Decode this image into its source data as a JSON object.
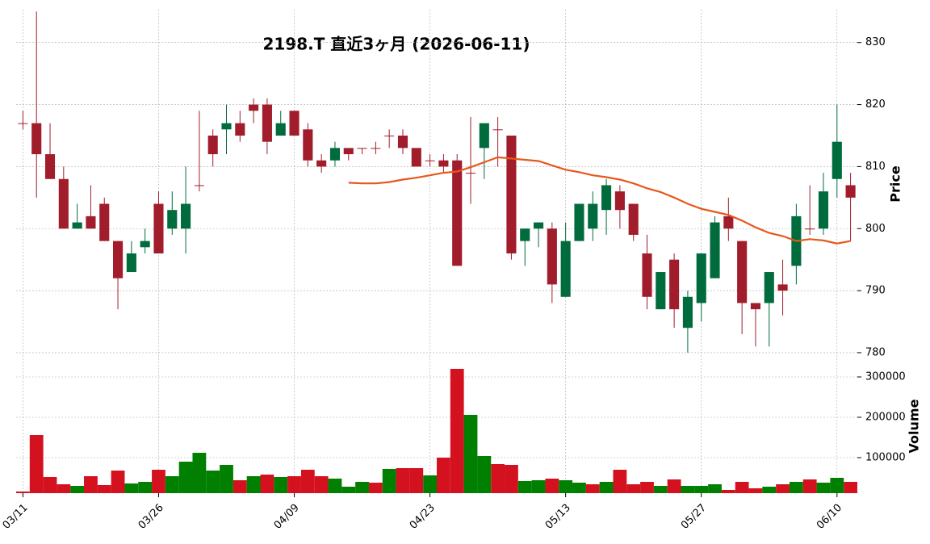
{
  "chart_data": {
    "type": "candlestick",
    "title": "2198.T  直近3ヶ月  (2026-06-11)",
    "categories": [
      "03/11",
      null,
      null,
      null,
      null,
      null,
      null,
      null,
      null,
      null,
      "03/26",
      null,
      null,
      null,
      null,
      null,
      null,
      null,
      null,
      null,
      "04/09",
      null,
      null,
      null,
      null,
      null,
      null,
      null,
      null,
      null,
      "04/23",
      null,
      null,
      null,
      null,
      null,
      null,
      null,
      null,
      null,
      "05/13",
      null,
      null,
      null,
      null,
      null,
      null,
      null,
      null,
      null,
      "05/27",
      null,
      null,
      null,
      null,
      null,
      null,
      null,
      null,
      null,
      "06/10",
      null
    ],
    "open": [
      817,
      817,
      812,
      808,
      800,
      802,
      804,
      798,
      793,
      797,
      804,
      800,
      800,
      807,
      815,
      816,
      817,
      820,
      820,
      815,
      819,
      816,
      811,
      811,
      813,
      813,
      813,
      815,
      815,
      813,
      811,
      811,
      811,
      809,
      813,
      816,
      815,
      798,
      800,
      800,
      789,
      798,
      800,
      803,
      806,
      804,
      796,
      787,
      795,
      784,
      788,
      792,
      802,
      798,
      788,
      788,
      791,
      794,
      800,
      800,
      808,
      807
    ],
    "high": [
      819,
      835,
      817,
      810,
      804,
      807,
      805,
      798,
      798,
      800,
      806,
      806,
      810,
      819,
      816,
      820,
      819,
      821,
      821,
      819,
      819,
      817,
      812,
      814,
      813,
      813,
      814,
      816,
      816,
      813,
      812,
      812,
      812,
      818,
      817,
      818,
      815,
      800,
      801,
      801,
      801,
      804,
      806,
      808,
      807,
      804,
      799,
      793,
      796,
      790,
      796,
      802,
      805,
      798,
      788,
      793,
      795,
      804,
      807,
      809,
      820,
      809
    ],
    "low": [
      816,
      805,
      808,
      800,
      800,
      800,
      798,
      787,
      793,
      796,
      796,
      799,
      796,
      806,
      810,
      812,
      814,
      817,
      812,
      815,
      815,
      810,
      809,
      810,
      811,
      812,
      812,
      813,
      812,
      810,
      810,
      809,
      794,
      804,
      808,
      810,
      795,
      794,
      797,
      788,
      789,
      798,
      798,
      799,
      800,
      798,
      787,
      787,
      784,
      780,
      785,
      792,
      798,
      783,
      781,
      781,
      786,
      791,
      799,
      799,
      805,
      798
    ],
    "close": [
      817,
      812,
      808,
      800,
      801,
      800,
      798,
      792,
      796,
      798,
      796,
      803,
      804,
      807,
      812,
      817,
      815,
      819,
      814,
      817,
      815,
      811,
      810,
      813,
      812,
      813,
      813,
      815,
      813,
      810,
      811,
      810,
      794,
      809,
      817,
      816,
      796,
      800,
      801,
      791,
      798,
      804,
      804,
      807,
      803,
      799,
      789,
      793,
      787,
      789,
      796,
      801,
      800,
      788,
      787,
      793,
      790,
      802,
      800,
      806,
      814,
      805
    ],
    "up_color": "#006b3c",
    "down_color": "#a11d2b",
    "ma": {
      "color": "#e8571b",
      "values": [
        null,
        null,
        null,
        null,
        null,
        null,
        null,
        null,
        null,
        null,
        null,
        null,
        null,
        null,
        null,
        null,
        null,
        null,
        null,
        null,
        null,
        null,
        null,
        null,
        807.4,
        807.3,
        807.3,
        807.5,
        807.9,
        808.2,
        808.6,
        809.0,
        809.2,
        809.9,
        810.7,
        811.5,
        811.3,
        811.1,
        810.9,
        810.2,
        809.5,
        809.1,
        808.6,
        808.3,
        807.9,
        807.3,
        806.5,
        805.9,
        805.0,
        804.0,
        803.2,
        802.7,
        802.2,
        801.3,
        800.2,
        799.3,
        798.8,
        798.0,
        798.3,
        798.1,
        797.6,
        798.0
      ]
    },
    "ylabel": "Price",
    "ylim": [
      778.3,
      835.3
    ],
    "yticks": [
      780,
      790,
      800,
      810,
      820,
      830
    ],
    "grid": true,
    "volume": {
      "label": "Volume",
      "ylim": [
        12000,
        320000
      ],
      "yticks": [
        100000,
        200000,
        300000
      ],
      "values": [
        16000,
        156000,
        52000,
        34000,
        30000,
        54000,
        32000,
        68000,
        36000,
        40000,
        70000,
        54000,
        90000,
        112000,
        68000,
        82000,
        44000,
        54000,
        58000,
        52000,
        54000,
        70000,
        54000,
        48000,
        28000,
        40000,
        38000,
        72000,
        74000,
        74000,
        56000,
        100000,
        320000,
        206000,
        104000,
        84000,
        82000,
        42000,
        44000,
        48000,
        44000,
        38000,
        34000,
        40000,
        70000,
        34000,
        40000,
        30000,
        46000,
        30000,
        30000,
        34000,
        20000,
        40000,
        24000,
        28000,
        34000,
        40000,
        46000,
        38000,
        50000,
        40000
      ],
      "colors": [
        "#d4111e",
        "#d4111e",
        "#d4111e",
        "#d4111e",
        "#007f00",
        "#d4111e",
        "#d4111e",
        "#d4111e",
        "#007f00",
        "#007f00",
        "#d4111e",
        "#007f00",
        "#007f00",
        "#007f00",
        "#007f00",
        "#007f00",
        "#d4111e",
        "#007f00",
        "#d4111e",
        "#007f00",
        "#d4111e",
        "#d4111e",
        "#d4111e",
        "#007f00",
        "#007f00",
        "#007f00",
        "#d4111e",
        "#007f00",
        "#d4111e",
        "#d4111e",
        "#007f00",
        "#d4111e",
        "#d4111e",
        "#007f00",
        "#007f00",
        "#d4111e",
        "#d4111e",
        "#007f00",
        "#007f00",
        "#d4111e",
        "#007f00",
        "#007f00",
        "#d4111e",
        "#007f00",
        "#d4111e",
        "#d4111e",
        "#d4111e",
        "#007f00",
        "#d4111e",
        "#007f00",
        "#007f00",
        "#007f00",
        "#d4111e",
        "#d4111e",
        "#d4111e",
        "#007f00",
        "#d4111e",
        "#007f00",
        "#d4111e",
        "#007f00",
        "#007f00",
        "#d4111e"
      ]
    }
  }
}
